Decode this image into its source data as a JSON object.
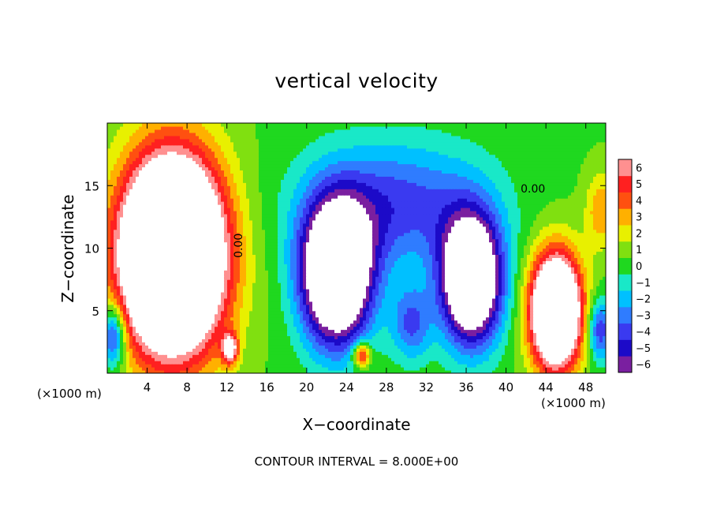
{
  "chart_data": {
    "type": "heatmap",
    "title": "vertical velocity",
    "xlabel": "X−coordinate",
    "ylabel": "Z−coordinate",
    "x_unit_left": "(×1000 m)",
    "x_unit_right": "(×1000 m)",
    "footer": "CONTOUR INTERVAL = 8.000E+00",
    "xlim": [
      0,
      50
    ],
    "ylim": [
      0,
      20
    ],
    "x_ticks": [
      4,
      8,
      12,
      16,
      20,
      24,
      28,
      32,
      36,
      40,
      44,
      48
    ],
    "y_ticks": [
      5,
      10,
      15
    ],
    "colorbar": {
      "levels": [
        -6,
        -5,
        -4,
        -3,
        -2,
        -1,
        0,
        1,
        2,
        3,
        4,
        5,
        6
      ],
      "labels": [
        "−6",
        "−5",
        "−4",
        "−3",
        "−2",
        "−1",
        "0",
        "1",
        "2",
        "3",
        "4",
        "5",
        "6"
      ],
      "colors": [
        "#7a1fa0",
        "#1c0ac8",
        "#3a3af0",
        "#2f7cff",
        "#00c0ff",
        "#19e8c8",
        "#1fd81f",
        "#80e010",
        "#e8f000",
        "#ffb000",
        "#ff5010",
        "#ff2020",
        "#ff9090"
      ]
    },
    "contour_labels": [
      {
        "text": "0.00",
        "x": 13.2,
        "y": 10.2,
        "angle": -90
      },
      {
        "text": "0.00",
        "x": 42.7,
        "y": 14.7,
        "angle": 0
      }
    ],
    "features": [
      {
        "kind": "updraft",
        "x": 6.5,
        "y": 9.5,
        "rx": 5.0,
        "ry": 7.5,
        "peak": 20
      },
      {
        "kind": "updraft",
        "x": 45.0,
        "y": 5.0,
        "rx": 2.5,
        "ry": 4.5,
        "peak": 15
      },
      {
        "kind": "updraft",
        "x": 12.3,
        "y": 2.0,
        "rx": 0.8,
        "ry": 1.2,
        "peak": 7
      },
      {
        "kind": "updraft",
        "x": 25.5,
        "y": 1.5,
        "rx": 0.9,
        "ry": 1.0,
        "peak": 6
      },
      {
        "kind": "updraft",
        "x": 49.5,
        "y": 13.0,
        "rx": 1.5,
        "ry": 3.0,
        "peak": 3
      },
      {
        "kind": "downdraft",
        "x": 23.0,
        "y": 8.0,
        "rx": 3.5,
        "ry": 5.5,
        "peak": -14
      },
      {
        "kind": "downdraft",
        "x": 36.5,
        "y": 7.5,
        "rx": 3.0,
        "ry": 5.0,
        "peak": -13
      },
      {
        "kind": "downdraft",
        "x": 29.0,
        "y": 13.5,
        "rx": 9.0,
        "ry": 5.0,
        "peak": -4.5
      },
      {
        "kind": "downdraft",
        "x": 30.5,
        "y": 4.0,
        "rx": 2.0,
        "ry": 3.0,
        "peak": -4
      },
      {
        "kind": "downdraft",
        "x": 0.6,
        "y": 3.0,
        "rx": 1.2,
        "ry": 2.5,
        "peak": -6
      },
      {
        "kind": "downdraft",
        "x": 49.4,
        "y": 3.5,
        "rx": 1.2,
        "ry": 2.5,
        "peak": -5
      }
    ]
  }
}
